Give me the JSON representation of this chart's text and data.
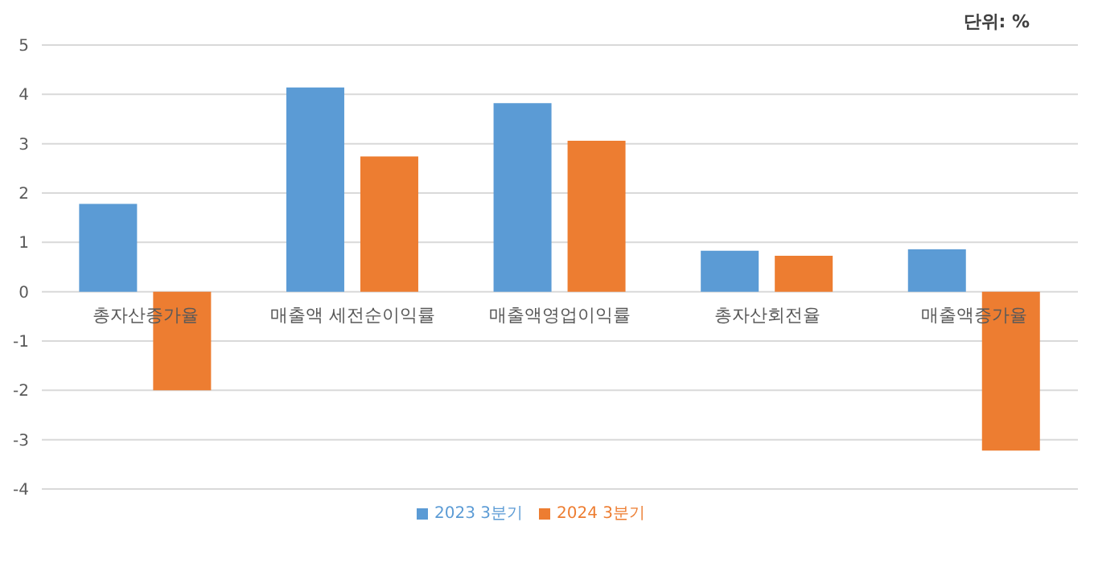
{
  "chart_data": {
    "type": "bar",
    "categories": [
      "총자산증가율",
      "매출액 세전순이익률",
      "매출액영업이익률",
      "총자산회전율",
      "매출액증가율"
    ],
    "series": [
      {
        "name": "2023 3분기",
        "color": "#5b9bd5",
        "values": [
          1.78,
          4.14,
          3.82,
          0.83,
          0.86
        ]
      },
      {
        "name": "2024 3분기",
        "color": "#ed7d31",
        "values": [
          -2.0,
          2.74,
          3.06,
          0.73,
          -3.22
        ]
      }
    ],
    "ylim": [
      -4,
      5
    ],
    "yticks": [
      -4,
      -3,
      -2,
      -1,
      0,
      1,
      2,
      3,
      4,
      5
    ],
    "grid": "y",
    "legend": "bottom",
    "annotations": [
      "단위: %"
    ]
  }
}
